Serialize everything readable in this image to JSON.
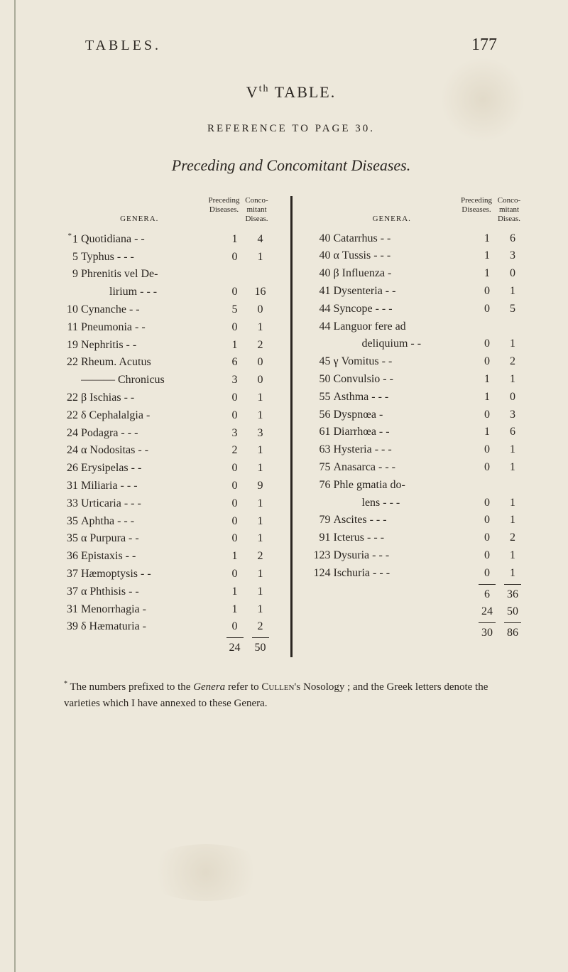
{
  "page_number": "177",
  "header_label": "TABLES.",
  "table_number_main": "V",
  "table_number_sup": "th",
  "table_number_rest": " TABLE.",
  "reference_line": "REFERENCE TO PAGE 30.",
  "italic_title": "Preceding and Concomitant Diseases.",
  "col_headers": {
    "genera": "GENERA.",
    "preceding": "Preceding Diseases.",
    "conco": "Conco-mitant Diseas."
  },
  "left_rows": [
    {
      "idx": "1",
      "ast": true,
      "label": "Quotidiana -  -",
      "n1": "1",
      "n2": "4"
    },
    {
      "idx": "5",
      "label": "Typhus -  -  -",
      "n1": "0",
      "n2": "1"
    },
    {
      "idx": "9",
      "label": "Phrenitis vel De-",
      "n1": "",
      "n2": ""
    },
    {
      "idx": "",
      "label": "lirium -  -  -",
      "n1": "0",
      "n2": "16",
      "indent": 2
    },
    {
      "idx": "10",
      "label": "Cynanche  -  -",
      "n1": "5",
      "n2": "0"
    },
    {
      "idx": "11",
      "label": "Pneumonia -  -",
      "n1": "0",
      "n2": "1"
    },
    {
      "idx": "19",
      "label": "Nephritis  -  -",
      "n1": "1",
      "n2": "2"
    },
    {
      "idx": "22",
      "label": "Rheum. Acutus",
      "n1": "6",
      "n2": "0"
    },
    {
      "idx": "",
      "label": "——— Chronicus",
      "n1": "3",
      "n2": "0",
      "rule": true
    },
    {
      "idx": "22",
      "label": "β Ischias  -  -",
      "n1": "0",
      "n2": "1"
    },
    {
      "idx": "22",
      "label": "δ Cephalalgia  -",
      "n1": "0",
      "n2": "1"
    },
    {
      "idx": "24",
      "label": "Podagra -  -  -",
      "n1": "3",
      "n2": "3"
    },
    {
      "idx": "24",
      "label": "α Nodositas -  -",
      "n1": "2",
      "n2": "1"
    },
    {
      "idx": "26",
      "label": "Erysipelas -  -",
      "n1": "0",
      "n2": "1"
    },
    {
      "idx": "31",
      "label": "Miliaria -  -  -",
      "n1": "0",
      "n2": "9"
    },
    {
      "idx": "33",
      "label": "Urticaria -  -  -",
      "n1": "0",
      "n2": "1"
    },
    {
      "idx": "35",
      "label": "Aphtha -  -  -",
      "n1": "0",
      "n2": "1"
    },
    {
      "idx": "35",
      "label": "α Purpura  -  -",
      "n1": "0",
      "n2": "1"
    },
    {
      "idx": "36",
      "label": "Epistaxis  -  -",
      "n1": "1",
      "n2": "2"
    },
    {
      "idx": "37",
      "label": "Hæmoptysis -  -",
      "n1": "0",
      "n2": "1"
    },
    {
      "idx": "37",
      "label": "α Phthisis  -  -",
      "n1": "1",
      "n2": "1"
    },
    {
      "idx": "31",
      "label": "Menorrhagia  -",
      "n1": "1",
      "n2": "1"
    },
    {
      "idx": "39",
      "label": "δ Hæmaturia  -",
      "n1": "0",
      "n2": "2"
    }
  ],
  "left_totals": {
    "n1": "24",
    "n2": "50"
  },
  "right_rows": [
    {
      "idx": "40",
      "label": "Catarrhus  -  -",
      "n1": "1",
      "n2": "6"
    },
    {
      "idx": "40",
      "label": "α Tussis -  -  -",
      "n1": "1",
      "n2": "3"
    },
    {
      "idx": "40",
      "label": "β Influenza   -",
      "n1": "1",
      "n2": "0"
    },
    {
      "idx": "41",
      "label": "Dysenteria -  -",
      "n1": "0",
      "n2": "1"
    },
    {
      "idx": "44",
      "label": "Syncope -  -  -",
      "n1": "0",
      "n2": "5"
    },
    {
      "idx": "44",
      "label": "Languor fere ad",
      "n1": "",
      "n2": ""
    },
    {
      "idx": "",
      "label": "deliquium -  -",
      "n1": "0",
      "n2": "1",
      "indent": 2
    },
    {
      "idx": "45",
      "label": "γ Vomitus -  -",
      "n1": "0",
      "n2": "2"
    },
    {
      "idx": "50",
      "label": "Convulsio  -  -",
      "n1": "1",
      "n2": "1"
    },
    {
      "idx": "55",
      "label": "Asthma -  -  -",
      "n1": "1",
      "n2": "0"
    },
    {
      "idx": "56",
      "label": "Dyspnœa    -",
      "n1": "0",
      "n2": "3"
    },
    {
      "idx": "61",
      "label": "Diarrhœa  -  -",
      "n1": "1",
      "n2": "6"
    },
    {
      "idx": "63",
      "label": "Hysteria -  -  -",
      "n1": "0",
      "n2": "1"
    },
    {
      "idx": "75",
      "label": "Anasarca -  -  -",
      "n1": "0",
      "n2": "1"
    },
    {
      "idx": "76",
      "label": "Phle gmatia do-",
      "n1": "",
      "n2": ""
    },
    {
      "idx": "",
      "label": "lens -  -  -",
      "n1": "0",
      "n2": "1",
      "indent": 2
    },
    {
      "idx": "79",
      "label": "Ascites -  -  -",
      "n1": "0",
      "n2": "1"
    },
    {
      "idx": "91",
      "label": "Icterus -  -  -",
      "n1": "0",
      "n2": "2"
    },
    {
      "idx": "123",
      "label": "Dysuria -  -  -",
      "n1": "0",
      "n2": "1"
    },
    {
      "idx": "124",
      "label": "Ischuria -  -  -",
      "n1": "0",
      "n2": "1"
    }
  ],
  "right_subtotal": {
    "n1": "6",
    "n2": "36"
  },
  "right_carry": {
    "n1": "24",
    "n2": "50"
  },
  "right_total": {
    "n1": "30",
    "n2": "86"
  },
  "footnote_ast": "*",
  "footnote_text_1": " The numbers prefixed to the ",
  "footnote_italic_1": "Genera",
  "footnote_text_2": " refer to ",
  "footnote_sc_1": "Cullen's",
  "footnote_text_3": " Nosology ; and the Greek letters denote the varieties which I have annexed to these Genera.",
  "colors": {
    "background": "#ede8db",
    "text": "#2a2520"
  }
}
